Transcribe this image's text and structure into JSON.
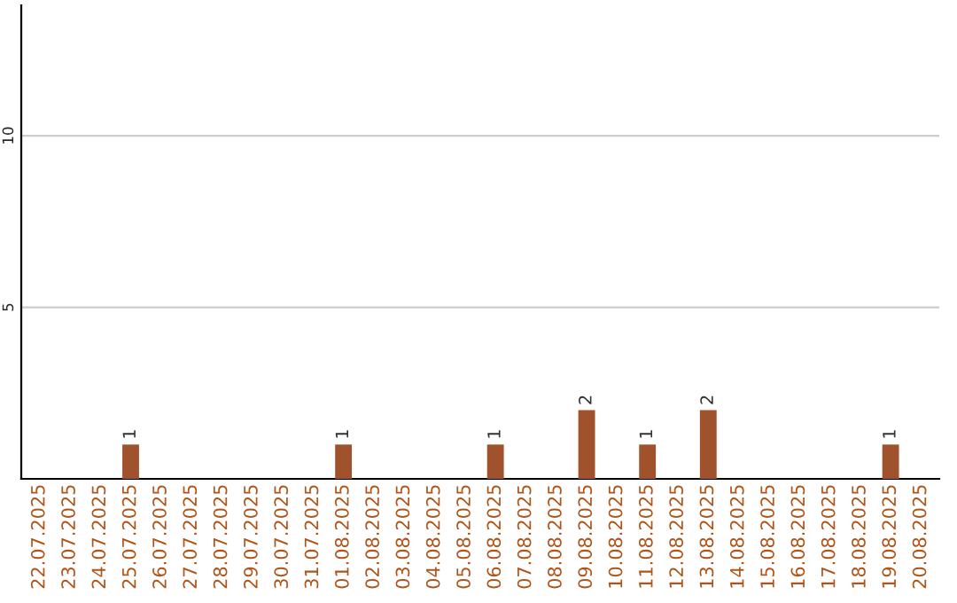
{
  "chart_data": {
    "type": "bar",
    "categories": [
      "22.07.2025",
      "23.07.2025",
      "24.07.2025",
      "25.07.2025",
      "26.07.2025",
      "27.07.2025",
      "28.07.2025",
      "29.07.2025",
      "30.07.2025",
      "31.07.2025",
      "01.08.2025",
      "02.08.2025",
      "03.08.2025",
      "04.08.2025",
      "05.08.2025",
      "06.08.2025",
      "07.08.2025",
      "08.08.2025",
      "09.08.2025",
      "10.08.2025",
      "11.08.2025",
      "12.08.2025",
      "13.08.2025",
      "14.08.2025",
      "15.08.2025",
      "16.08.2025",
      "17.08.2025",
      "18.08.2025",
      "19.08.2025",
      "20.08.2025"
    ],
    "values": [
      0,
      0,
      0,
      1,
      0,
      0,
      0,
      0,
      0,
      0,
      1,
      0,
      0,
      0,
      0,
      1,
      0,
      0,
      2,
      0,
      1,
      0,
      2,
      0,
      0,
      0,
      0,
      0,
      1,
      0
    ],
    "value_labels": [
      null,
      null,
      null,
      "1",
      null,
      null,
      null,
      null,
      null,
      null,
      "1",
      null,
      null,
      null,
      null,
      "1",
      null,
      null,
      "2",
      null,
      "1",
      null,
      "2",
      null,
      null,
      null,
      null,
      null,
      "1",
      null
    ],
    "color": "#a0522d",
    "ylim": [
      0,
      13.8
    ],
    "yticks": [
      5,
      10
    ],
    "grid": "y"
  }
}
